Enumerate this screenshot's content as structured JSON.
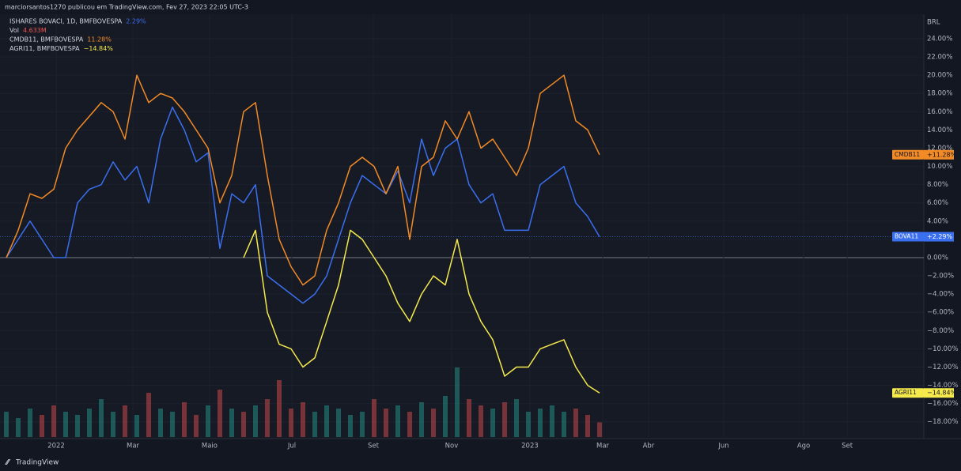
{
  "header": {
    "publisher": "marciorsantos1270 publicou em TradingView.com, Fev 27, 2023 22:05 UTC-3",
    "brand": "TradingView"
  },
  "chart_data": {
    "type": "line",
    "currency": "BRL",
    "xlim": [
      0,
      77
    ],
    "xticks": [
      {
        "value": 4.2,
        "label": "2022"
      },
      {
        "value": 10.67,
        "label": "Mar"
      },
      {
        "value": 17.13,
        "label": "Maio"
      },
      {
        "value": 24.07,
        "label": "Jul"
      },
      {
        "value": 30.93,
        "label": "Set"
      },
      {
        "value": 37.53,
        "label": "Nov"
      },
      {
        "value": 44.13,
        "label": "2023"
      },
      {
        "value": 50.27,
        "label": "Mar"
      },
      {
        "value": 54.13,
        "label": "Abr"
      },
      {
        "value": 60.47,
        "label": "Jun"
      },
      {
        "value": 67.2,
        "label": "Ago"
      },
      {
        "value": 70.87,
        "label": "Set"
      }
    ],
    "ylim": [
      -19.5,
      24.5
    ],
    "yticks": [
      {
        "value": -18,
        "label": "−18.00%"
      },
      {
        "value": -16,
        "label": "−16.00%"
      },
      {
        "value": -14,
        "label": "−14.00%"
      },
      {
        "value": -12,
        "label": "−12.00%"
      },
      {
        "value": -10,
        "label": "−10.00%"
      },
      {
        "value": -8,
        "label": "−8.00%"
      },
      {
        "value": -6,
        "label": "−6.00%"
      },
      {
        "value": -4,
        "label": "−4.00%"
      },
      {
        "value": -2,
        "label": "−2.00%"
      },
      {
        "value": 0,
        "label": "0.00%"
      },
      {
        "value": 2,
        "label": "2.00%"
      },
      {
        "value": 4,
        "label": "4.00%"
      },
      {
        "value": 6,
        "label": "6.00%"
      },
      {
        "value": 8,
        "label": "8.00%"
      },
      {
        "value": 10,
        "label": "10.00%"
      },
      {
        "value": 12,
        "label": "12.00%"
      },
      {
        "value": 14,
        "label": "14.00%"
      },
      {
        "value": 16,
        "label": "16.00%"
      },
      {
        "value": 18,
        "label": "18.00%"
      },
      {
        "value": 20,
        "label": "20.00%"
      },
      {
        "value": 22,
        "label": "22.00%"
      },
      {
        "value": 24,
        "label": "24.00%"
      }
    ],
    "series": [
      {
        "name": "BOVA11",
        "legend": "ISHARES BOVACI, 1D, BMFBOVESPA",
        "legend_value": "2.29%",
        "last_label": "+2.29%",
        "color": "#3a6ff0",
        "values": [
          0,
          2,
          4,
          2,
          0,
          0,
          6,
          7.5,
          8,
          10.5,
          8.5,
          10,
          6,
          13,
          16.5,
          14,
          10.5,
          11.5,
          1,
          7,
          6,
          8,
          -2,
          -3,
          -4,
          -5,
          -4,
          -2,
          2,
          6,
          9,
          8,
          7,
          9.5,
          6,
          13,
          9,
          12,
          13,
          8,
          6,
          7,
          3,
          3,
          3,
          8,
          9,
          10,
          6,
          4.5,
          2.29
        ]
      },
      {
        "name": "CMDB11",
        "legend": "CMDB11, BMFBOVESPA",
        "legend_value": "11.28%",
        "last_label": "+11.28%",
        "color": "#f28a25",
        "values": [
          0,
          3,
          7,
          6.5,
          7.5,
          12,
          14,
          15.5,
          17,
          16,
          13,
          20,
          17,
          18,
          17.5,
          16,
          14,
          12,
          6,
          9,
          16,
          17,
          9,
          2,
          -1,
          -3,
          -2,
          3,
          6,
          10,
          11,
          10,
          7,
          10,
          2,
          10,
          11,
          15,
          13,
          16,
          12,
          13,
          11,
          9,
          12,
          18,
          19,
          20,
          15,
          14,
          11.28
        ]
      },
      {
        "name": "AGRI11",
        "legend": "AGRI11, BMFBOVESPA",
        "legend_value": "−14.84%",
        "last_label": "−14.84%",
        "color": "#f5e94c",
        "values": [
          null,
          null,
          null,
          null,
          null,
          null,
          null,
          null,
          null,
          null,
          null,
          null,
          null,
          null,
          null,
          null,
          null,
          null,
          null,
          null,
          0,
          3,
          -6,
          -9.5,
          -10,
          -12,
          -11,
          -7,
          -3,
          3,
          2,
          0,
          -2,
          -5,
          -7,
          -4,
          -2,
          -3,
          2,
          -4,
          -7,
          -9,
          -13,
          -12,
          -12,
          -10,
          -9.5,
          -9,
          -12,
          -14,
          -14.84
        ]
      }
    ],
    "volume": {
      "name": "Vol",
      "vlim": [
        0,
        25
      ],
      "value_label": "4.633M",
      "values": [
        8,
        6,
        9,
        7,
        10,
        8,
        7,
        9,
        12,
        8,
        10,
        7,
        14,
        9,
        8,
        11,
        7,
        10,
        15,
        9,
        8,
        10,
        12,
        18,
        9,
        11,
        8,
        10,
        9,
        7,
        8,
        12,
        9,
        10,
        8,
        11,
        9,
        13,
        22,
        12,
        10,
        9,
        11,
        12,
        8,
        9,
        10,
        8,
        9,
        7,
        4.633
      ]
    }
  }
}
